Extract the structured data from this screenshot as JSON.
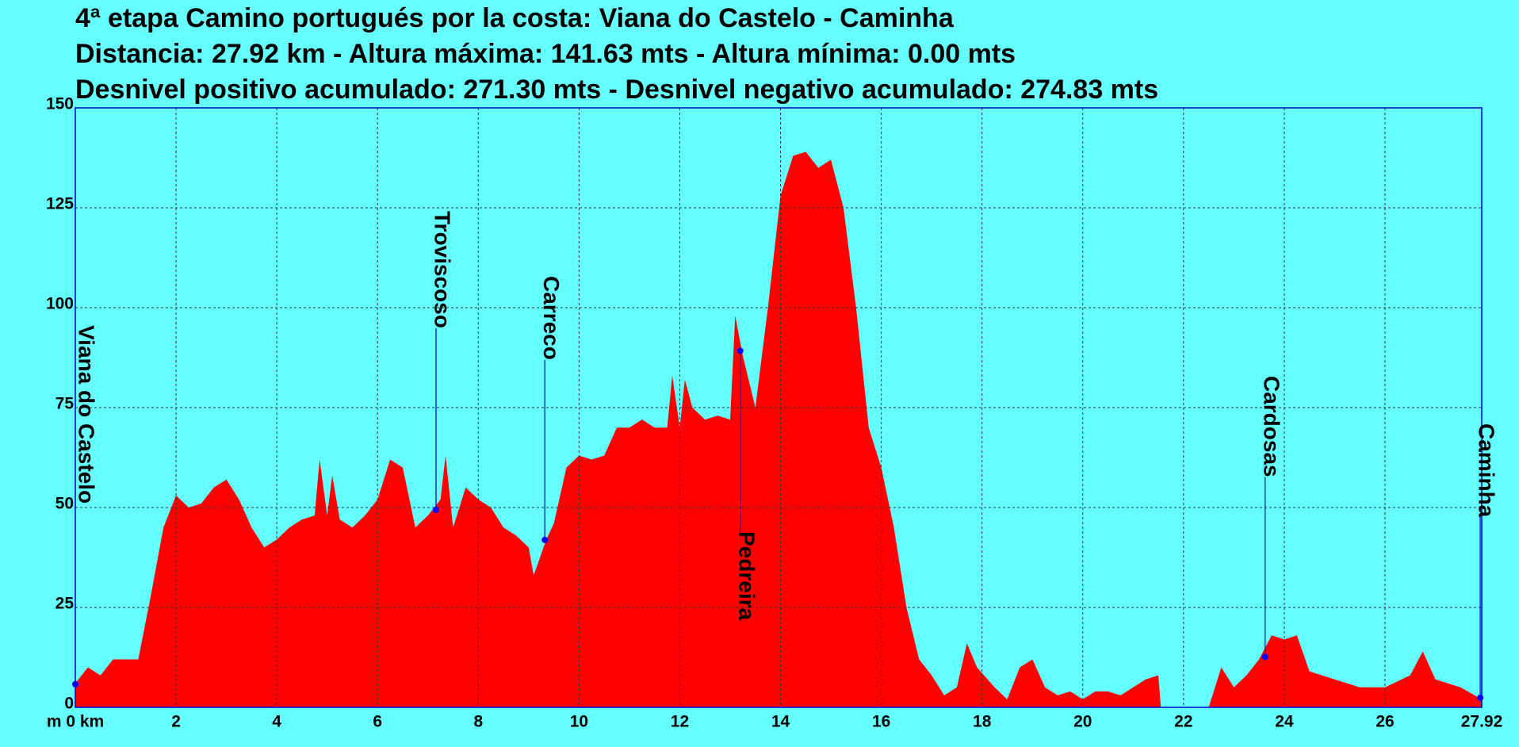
{
  "chart_data": {
    "type": "area",
    "title": "4ª etapa Camino portugués por la costa: Viana do Castelo - Caminha",
    "subtitle": "Distancia: 27.92 km - Altura máxima: 141.63 mts - Altura mínima: 0.00 mts",
    "subtitle2": "Desnivel positivo acumulado: 271.30 mts - Desnivel negativo acumulado: 274.83 mts",
    "color": "#ff0000",
    "grid": true,
    "xlim": [
      0,
      27.92
    ],
    "ylim": [
      0,
      150
    ],
    "xticks": [
      {
        "value": 0,
        "label": "m 0 km"
      },
      2,
      4,
      6,
      8,
      10,
      12,
      14,
      16,
      18,
      20,
      22,
      24,
      26,
      27.92
    ],
    "yticks": [
      0,
      25,
      50,
      75,
      100,
      125,
      150
    ],
    "x": [
      0,
      0.25,
      0.5,
      0.75,
      1.0,
      1.25,
      1.5,
      1.75,
      2.0,
      2.25,
      2.5,
      2.75,
      3.0,
      3.25,
      3.5,
      3.75,
      4.0,
      4.25,
      4.5,
      4.75,
      4.85,
      5.0,
      5.1,
      5.25,
      5.5,
      5.75,
      6.0,
      6.25,
      6.5,
      6.75,
      7.0,
      7.25,
      7.35,
      7.5,
      7.75,
      8.0,
      8.25,
      8.5,
      8.75,
      9.0,
      9.1,
      9.35,
      9.5,
      9.75,
      10.0,
      10.25,
      10.5,
      10.75,
      11.0,
      11.25,
      11.5,
      11.75,
      11.85,
      12.0,
      12.1,
      12.25,
      12.5,
      12.75,
      13.0,
      13.1,
      13.25,
      13.5,
      13.75,
      14.0,
      14.25,
      14.5,
      14.75,
      15.0,
      15.25,
      15.5,
      15.75,
      16.0,
      16.25,
      16.5,
      16.75,
      17.0,
      17.25,
      17.5,
      17.7,
      17.9,
      18.25,
      18.5,
      18.75,
      19.0,
      19.25,
      19.5,
      19.75,
      20.0,
      20.25,
      20.5,
      20.75,
      21.0,
      21.25,
      21.5,
      21.55,
      22.5,
      22.75,
      23.0,
      23.25,
      23.5,
      23.75,
      24.0,
      24.25,
      24.5,
      25.0,
      25.5,
      26.0,
      26.5,
      26.75,
      27.0,
      27.5,
      27.92
    ],
    "values": [
      6,
      10,
      8,
      12,
      12,
      12,
      28,
      45,
      53,
      50,
      51,
      55,
      57,
      52,
      45,
      40,
      42,
      45,
      47,
      48,
      62,
      48,
      58,
      47,
      45,
      48,
      52,
      62,
      60,
      45,
      48,
      52,
      63,
      45,
      55,
      52,
      50,
      45,
      43,
      40,
      33,
      42,
      46,
      60,
      63,
      62,
      63,
      70,
      70,
      72,
      70,
      70,
      83,
      70,
      82,
      75,
      72,
      73,
      72,
      98,
      88,
      75,
      100,
      128,
      138,
      139,
      135,
      137,
      125,
      100,
      70,
      60,
      45,
      25,
      12,
      8,
      3,
      5,
      16,
      10,
      5,
      2,
      10,
      12,
      5,
      3,
      4,
      2,
      4,
      4,
      3,
      5,
      7,
      8,
      0,
      0,
      10,
      5,
      8,
      12,
      18,
      17,
      18,
      9,
      7,
      5,
      5,
      8,
      14,
      7,
      5,
      2
    ],
    "annotations": [
      {
        "label": "Viana do Castelo",
        "x": 0,
        "y": 5.8
      },
      {
        "label": "Troviscoso",
        "x": 7.16,
        "y": 49.4
      },
      {
        "label": "Carreco",
        "x": 9.32,
        "y": 41.9
      },
      {
        "label": "Pedreira",
        "x": 13.2,
        "y": 89.2
      },
      {
        "label": "Cardosas",
        "x": 23.62,
        "y": 12.6
      },
      {
        "label": "Caminha",
        "x": 27.89,
        "y": 2.4
      }
    ]
  }
}
